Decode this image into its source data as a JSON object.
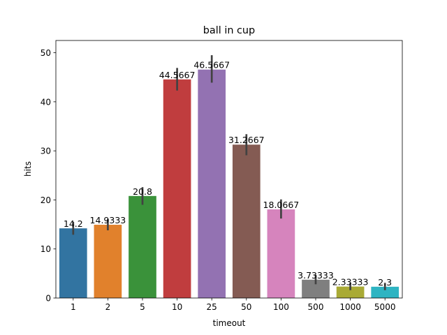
{
  "chart_data": {
    "type": "bar",
    "title": "ball in cup",
    "xlabel": "timeout",
    "ylabel": "hits",
    "ylim": [
      0,
      52.5
    ],
    "yticks": [
      0,
      10,
      20,
      30,
      40,
      50
    ],
    "categories": [
      "1",
      "2",
      "5",
      "10",
      "25",
      "50",
      "100",
      "500",
      "1000",
      "5000"
    ],
    "values": [
      14.2,
      14.9333,
      20.8,
      44.5667,
      46.5667,
      31.2667,
      18.0667,
      3.73333,
      2.33333,
      2.3
    ],
    "value_labels": [
      "14.2",
      "14.9333",
      "20.8",
      "44.5667",
      "46.5667",
      "31.2667",
      "18.0667",
      "3.73333",
      "2.33333",
      "2.3"
    ],
    "error_low": [
      12.9,
      13.8,
      19.0,
      42.3,
      43.9,
      29.1,
      16.2,
      2.8,
      1.6,
      1.6
    ],
    "error_high": [
      15.5,
      16.1,
      22.6,
      46.9,
      49.5,
      33.4,
      20.1,
      4.7,
      3.1,
      3.1
    ],
    "colors": [
      "#3274a1",
      "#e1812c",
      "#3a923a",
      "#c03d3e",
      "#9372b2",
      "#845b53",
      "#d684bd",
      "#7f7f7f",
      "#a9aa35",
      "#2eb4c2"
    ],
    "errorbar_color": "#424242",
    "grid": false
  }
}
